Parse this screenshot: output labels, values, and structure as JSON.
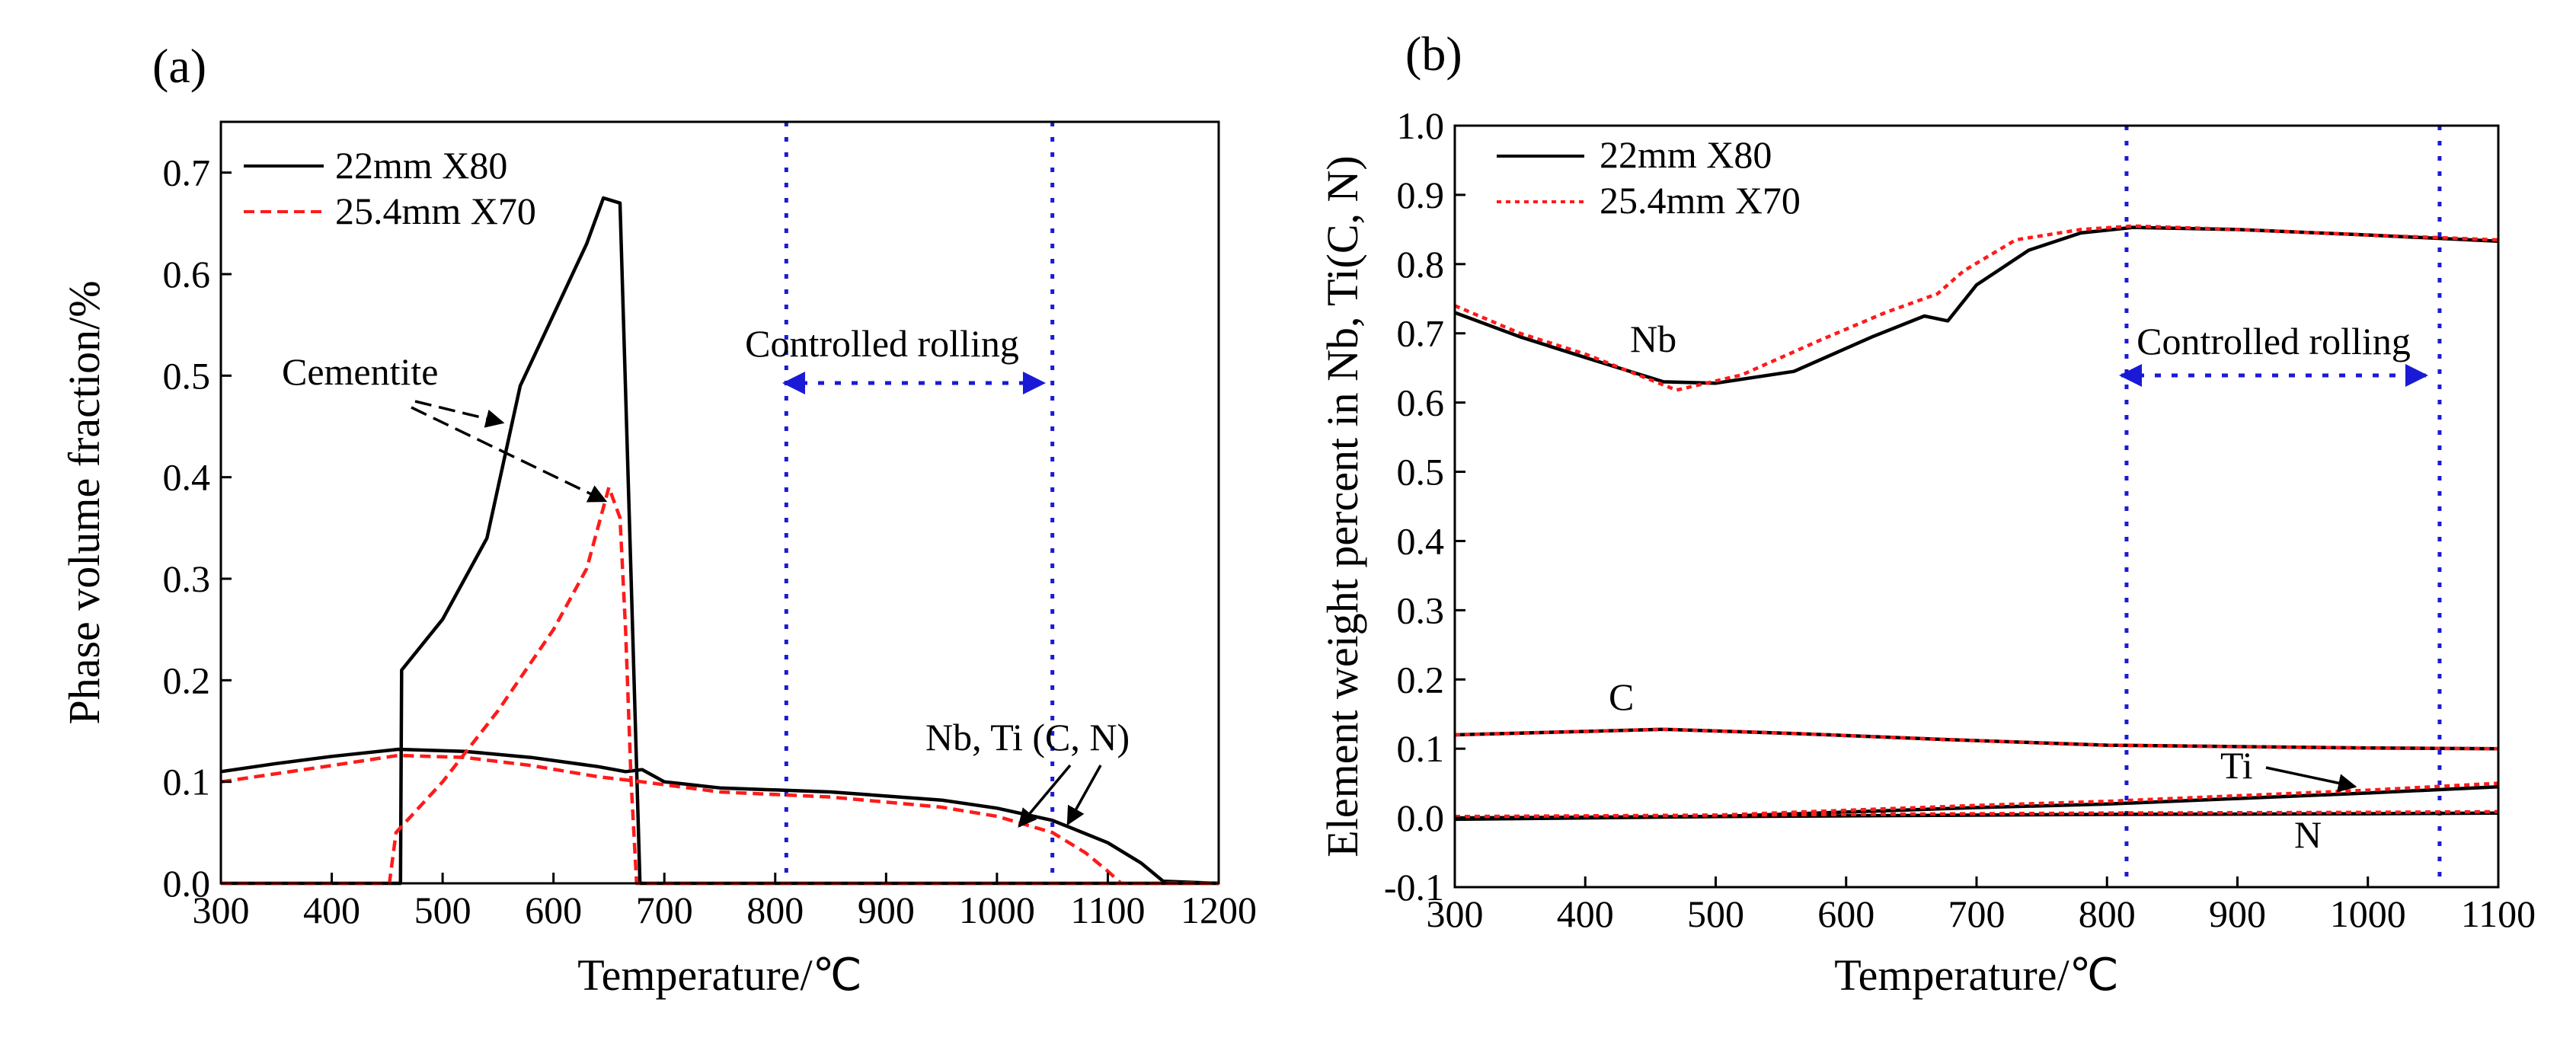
{
  "colors": {
    "black": "#000000",
    "red": "#ff1a1a",
    "blue": "#1a1ad6"
  },
  "chart_data": [
    {
      "type": "line",
      "panel_label": "(a)",
      "xlabel": "Temperature/℃",
      "ylabel": "Phase volume fraction/%",
      "xlim": [
        300,
        1200
      ],
      "ylim": [
        0,
        0.75
      ],
      "xticks": [
        300,
        400,
        500,
        600,
        700,
        800,
        900,
        1000,
        1100,
        1200
      ],
      "yticks": [
        0.0,
        0.1,
        0.2,
        0.3,
        0.4,
        0.5,
        0.6,
        0.7
      ],
      "ytick_labels": [
        "0.0",
        "0.1",
        "0.2",
        "0.3",
        "0.4",
        "0.5",
        "0.6",
        "0.7"
      ],
      "legend": [
        {
          "label": "22mm X80",
          "color": "#000000",
          "style": "solid"
        },
        {
          "label": "25.4mm X70",
          "color": "#ff1a1a",
          "style": "dashed"
        }
      ],
      "series": [
        {
          "name": "22mm X80 Nb, Ti (C, N)",
          "color": "#000000",
          "style": "solid",
          "points": [
            [
              300,
              0.11
            ],
            [
              350,
              0.118
            ],
            [
              400,
              0.125
            ],
            [
              460,
              0.132
            ],
            [
              520,
              0.13
            ],
            [
              580,
              0.124
            ],
            [
              640,
              0.115
            ],
            [
              665,
              0.11
            ],
            [
              680,
              0.112
            ],
            [
              700,
              0.1
            ],
            [
              750,
              0.094
            ],
            [
              850,
              0.09
            ],
            [
              950,
              0.082
            ],
            [
              1000,
              0.074
            ],
            [
              1050,
              0.062
            ],
            [
              1100,
              0.04
            ],
            [
              1130,
              0.02
            ],
            [
              1150,
              0.002
            ],
            [
              1200,
              0.0
            ]
          ]
        },
        {
          "name": "22mm X80 Cementite",
          "color": "#000000",
          "style": "solid",
          "points": [
            [
              300,
              0.0
            ],
            [
              458,
              0.0
            ],
            [
              462,
              0.0
            ],
            [
              463,
              0.21
            ],
            [
              500,
              0.26
            ],
            [
              540,
              0.34
            ],
            [
              570,
              0.49
            ],
            [
              600,
              0.56
            ],
            [
              630,
              0.63
            ],
            [
              645,
              0.675
            ],
            [
              660,
              0.67
            ],
            [
              670,
              0.3
            ],
            [
              678,
              0.0
            ],
            [
              1200,
              0.0
            ]
          ]
        },
        {
          "name": "25.4mm X70 Nb, Ti (C, N)",
          "color": "#ff1a1a",
          "style": "dashed",
          "points": [
            [
              300,
              0.1
            ],
            [
              400,
              0.116
            ],
            [
              460,
              0.126
            ],
            [
              520,
              0.124
            ],
            [
              580,
              0.116
            ],
            [
              640,
              0.105
            ],
            [
              680,
              0.1
            ],
            [
              750,
              0.09
            ],
            [
              850,
              0.085
            ],
            [
              950,
              0.075
            ],
            [
              1000,
              0.066
            ],
            [
              1050,
              0.05
            ],
            [
              1080,
              0.03
            ],
            [
              1100,
              0.012
            ],
            [
              1112,
              0.0
            ],
            [
              1200,
              0.0
            ]
          ]
        },
        {
          "name": "25.4mm X70 Cementite",
          "color": "#ff1a1a",
          "style": "dashed",
          "points": [
            [
              300,
              0.0
            ],
            [
              452,
              0.0
            ],
            [
              458,
              0.05
            ],
            [
              500,
              0.1
            ],
            [
              550,
              0.17
            ],
            [
              600,
              0.25
            ],
            [
              630,
              0.31
            ],
            [
              650,
              0.39
            ],
            [
              660,
              0.36
            ],
            [
              665,
              0.25
            ],
            [
              670,
              0.1
            ],
            [
              675,
              0.0
            ],
            [
              1200,
              0.0
            ]
          ]
        }
      ],
      "vlines": [
        810,
        1050
      ],
      "annotations": {
        "controlled_rolling": "Controlled rolling",
        "cementite": "Cementite",
        "nbti": "Nb, Ti (C, N)"
      }
    },
    {
      "type": "line",
      "panel_label": "(b)",
      "xlabel": "Temperature/℃",
      "ylabel": "Element weight percent in Nb, Ti(C, N)",
      "xlim": [
        300,
        1100
      ],
      "ylim": [
        -0.1,
        1.0
      ],
      "xticks": [
        300,
        400,
        500,
        600,
        700,
        800,
        900,
        1000,
        1100
      ],
      "yticks": [
        -0.1,
        0.0,
        0.1,
        0.2,
        0.3,
        0.4,
        0.5,
        0.6,
        0.7,
        0.8,
        0.9,
        1.0
      ],
      "ytick_labels": [
        "-0.1",
        "0.0",
        "0.1",
        "0.2",
        "0.3",
        "0.4",
        "0.5",
        "0.6",
        "0.7",
        "0.8",
        "0.9",
        "1.0"
      ],
      "legend": [
        {
          "label": "22mm X80",
          "color": "#000000",
          "style": "solid"
        },
        {
          "label": "25.4mm X70",
          "color": "#ff1a1a",
          "style": "dashed"
        }
      ],
      "series": [
        {
          "name": "22mm X80 Nb",
          "color": "#000000",
          "style": "solid",
          "points": [
            [
              300,
              0.73
            ],
            [
              350,
              0.695
            ],
            [
              400,
              0.665
            ],
            [
              460,
              0.63
            ],
            [
              500,
              0.628
            ],
            [
              560,
              0.645
            ],
            [
              620,
              0.695
            ],
            [
              660,
              0.725
            ],
            [
              678,
              0.718
            ],
            [
              700,
              0.77
            ],
            [
              740,
              0.82
            ],
            [
              780,
              0.845
            ],
            [
              820,
              0.853
            ],
            [
              900,
              0.85
            ],
            [
              1000,
              0.842
            ],
            [
              1100,
              0.833
            ]
          ]
        },
        {
          "name": "25.4mm X70 Nb",
          "color": "#ff1a1a",
          "style": "dashed",
          "points": [
            [
              300,
              0.74
            ],
            [
              350,
              0.7
            ],
            [
              400,
              0.67
            ],
            [
              470,
              0.618
            ],
            [
              520,
              0.64
            ],
            [
              580,
              0.69
            ],
            [
              630,
              0.73
            ],
            [
              670,
              0.757
            ],
            [
              690,
              0.79
            ],
            [
              730,
              0.835
            ],
            [
              780,
              0.85
            ],
            [
              820,
              0.855
            ],
            [
              900,
              0.85
            ],
            [
              1000,
              0.842
            ],
            [
              1100,
              0.835
            ]
          ]
        },
        {
          "name": "22mm X80 C",
          "color": "#000000",
          "style": "solid",
          "points": [
            [
              300,
              0.12
            ],
            [
              400,
              0.125
            ],
            [
              460,
              0.128
            ],
            [
              560,
              0.122
            ],
            [
              680,
              0.113
            ],
            [
              800,
              0.105
            ],
            [
              1000,
              0.101
            ],
            [
              1100,
              0.1
            ]
          ]
        },
        {
          "name": "25.4mm X70 C",
          "color": "#ff1a1a",
          "style": "dashed",
          "points": [
            [
              300,
              0.12
            ],
            [
              400,
              0.125
            ],
            [
              460,
              0.128
            ],
            [
              560,
              0.122
            ],
            [
              680,
              0.113
            ],
            [
              800,
              0.105
            ],
            [
              1000,
              0.101
            ],
            [
              1100,
              0.1
            ]
          ]
        },
        {
          "name": "22mm X80 Ti",
          "color": "#000000",
          "style": "solid",
          "points": [
            [
              300,
              -0.002
            ],
            [
              500,
              0.002
            ],
            [
              700,
              0.015
            ],
            [
              800,
              0.02
            ],
            [
              900,
              0.028
            ],
            [
              1000,
              0.036
            ],
            [
              1100,
              0.045
            ]
          ]
        },
        {
          "name": "25.4mm X70 Ti",
          "color": "#ff1a1a",
          "style": "dashed",
          "points": [
            [
              300,
              0.0
            ],
            [
              500,
              0.004
            ],
            [
              700,
              0.018
            ],
            [
              800,
              0.024
            ],
            [
              900,
              0.032
            ],
            [
              1000,
              0.04
            ],
            [
              1100,
              0.05
            ]
          ]
        },
        {
          "name": "22mm X80 N",
          "color": "#000000",
          "style": "solid",
          "points": [
            [
              300,
              0.0
            ],
            [
              600,
              0.003
            ],
            [
              800,
              0.005
            ],
            [
              1000,
              0.006
            ],
            [
              1100,
              0.007
            ]
          ]
        },
        {
          "name": "25.4mm X70 N",
          "color": "#ff1a1a",
          "style": "dashed",
          "points": [
            [
              300,
              0.002
            ],
            [
              600,
              0.005
            ],
            [
              800,
              0.007
            ],
            [
              1000,
              0.008
            ],
            [
              1100,
              0.009
            ]
          ]
        }
      ],
      "vlines": [
        815,
        1055
      ],
      "annotations": {
        "controlled_rolling": "Controlled rolling",
        "nb": "Nb",
        "c": "C",
        "ti": "Ti",
        "n": "N"
      }
    }
  ]
}
